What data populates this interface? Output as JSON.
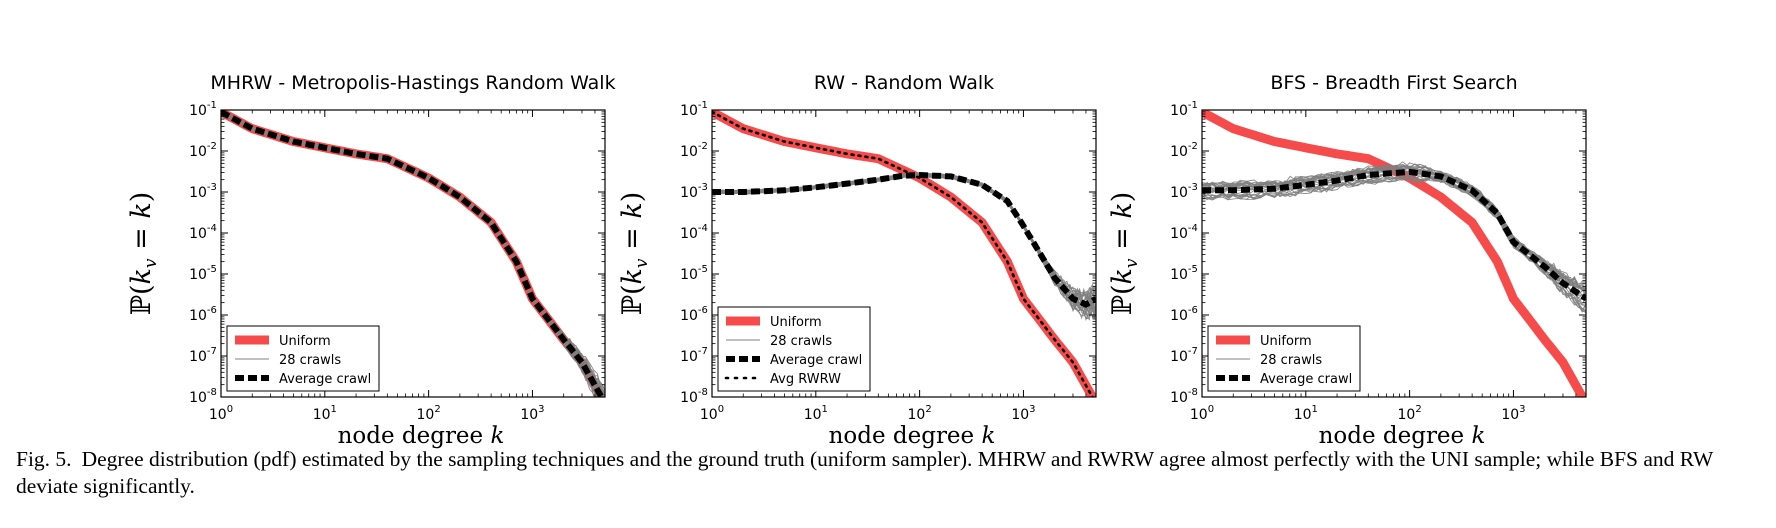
{
  "caption": {
    "label": "Fig. 5.",
    "text": "Degree distribution (pdf) estimated by the sampling techniques and the ground truth (uniform sampler). MHRW and RWRW agree almost perfectly with the UNI sample; while BFS and RW deviate significantly."
  },
  "colors": {
    "uniform": "#f54b4b",
    "crawls": "#808080",
    "average": "#000000"
  },
  "chart_data": [
    {
      "type": "line",
      "title": "MHRW - Metropolis-Hastings Random Walk",
      "xlabel": "node degree k",
      "ylabel": "ℙ(k_v = k)",
      "xscale": "log",
      "yscale": "log",
      "xlim": [
        1,
        5000
      ],
      "ylim": [
        1e-08,
        0.1
      ],
      "xticks": [
        "10^0",
        "10^1",
        "10^2",
        "10^3"
      ],
      "yticks": [
        "10^-1",
        "10^-2",
        "10^-3",
        "10^-4",
        "10^-5",
        "10^-6",
        "10^-7",
        "10^-8"
      ],
      "legend": {
        "placement": "lower-left",
        "entries": [
          "Uniform",
          "28 crawls",
          "Average crawl"
        ]
      },
      "series": [
        {
          "name": "Uniform",
          "x": [
            1,
            2,
            5,
            10,
            20,
            40,
            100,
            200,
            400,
            700,
            1000,
            2000,
            3000,
            5000
          ],
          "y": [
            0.09,
            0.035,
            0.017,
            0.012,
            0.0085,
            0.0065,
            0.0022,
            0.00075,
            0.00018,
            2e-05,
            2.5e-06,
            2.5e-07,
            7e-08,
            7e-09
          ]
        },
        {
          "name": "28 crawls",
          "x": [
            1,
            2,
            5,
            10,
            20,
            40,
            100,
            200,
            400,
            700,
            1000,
            2000,
            3000,
            5000
          ],
          "y": [
            0.09,
            0.035,
            0.017,
            0.012,
            0.0085,
            0.0065,
            0.0022,
            0.00075,
            0.00018,
            2e-05,
            2.5e-06,
            2.5e-07,
            7e-08,
            7e-09
          ]
        },
        {
          "name": "Average crawl",
          "x": [
            1,
            2,
            5,
            10,
            20,
            40,
            100,
            200,
            400,
            700,
            1000,
            2000,
            3000,
            5000
          ],
          "y": [
            0.09,
            0.035,
            0.017,
            0.012,
            0.0085,
            0.0065,
            0.0022,
            0.00075,
            0.00018,
            2e-05,
            2.5e-06,
            2.5e-07,
            7e-08,
            7e-09
          ]
        }
      ]
    },
    {
      "type": "line",
      "title": "RW - Random Walk",
      "xlabel": "node degree k",
      "ylabel": "ℙ(k_v = k)",
      "xscale": "log",
      "yscale": "log",
      "xlim": [
        1,
        5000
      ],
      "ylim": [
        1e-08,
        0.1
      ],
      "xticks": [
        "10^0",
        "10^1",
        "10^2",
        "10^3"
      ],
      "yticks": [
        "10^-1",
        "10^-2",
        "10^-3",
        "10^-4",
        "10^-5",
        "10^-6",
        "10^-7",
        "10^-8"
      ],
      "legend": {
        "placement": "lower-left",
        "entries": [
          "Uniform",
          "28 crawls",
          "Average crawl",
          "Avg RWRW"
        ]
      },
      "series": [
        {
          "name": "Uniform",
          "x": [
            1,
            2,
            5,
            10,
            20,
            40,
            100,
            200,
            400,
            700,
            1000,
            2000,
            3000,
            5000
          ],
          "y": [
            0.09,
            0.035,
            0.017,
            0.012,
            0.0085,
            0.0065,
            0.0022,
            0.00075,
            0.00018,
            2e-05,
            2.5e-06,
            2.5e-07,
            7e-08,
            7e-09
          ]
        },
        {
          "name": "28 crawls",
          "x": [
            1,
            2,
            5,
            10,
            20,
            40,
            70,
            100,
            200,
            400,
            700,
            1000,
            2000,
            3000,
            4000,
            5000
          ],
          "y": [
            0.001,
            0.001,
            0.0011,
            0.0013,
            0.0016,
            0.002,
            0.0025,
            0.0026,
            0.0024,
            0.0015,
            0.0006,
            0.00015,
            8e-06,
            2.5e-06,
            1.8e-06,
            2.5e-06
          ]
        },
        {
          "name": "Average crawl",
          "x": [
            1,
            2,
            5,
            10,
            20,
            40,
            70,
            100,
            200,
            400,
            700,
            1000,
            2000,
            3000,
            4000,
            5000
          ],
          "y": [
            0.001,
            0.001,
            0.0011,
            0.0013,
            0.0016,
            0.002,
            0.0025,
            0.0026,
            0.0024,
            0.0015,
            0.0006,
            0.00015,
            8e-06,
            2.5e-06,
            1.8e-06,
            2.5e-06
          ]
        },
        {
          "name": "Avg RWRW",
          "x": [
            1,
            2,
            5,
            10,
            20,
            40,
            100,
            200,
            400,
            700,
            1000,
            2000,
            3000,
            5000
          ],
          "y": [
            0.09,
            0.035,
            0.017,
            0.012,
            0.0085,
            0.0065,
            0.0022,
            0.00075,
            0.00018,
            2e-05,
            2.5e-06,
            2.5e-07,
            7e-08,
            7e-09
          ]
        }
      ]
    },
    {
      "type": "line",
      "title": "BFS - Breadth First Search",
      "xlabel": "node degree k",
      "ylabel": "ℙ(k_v = k)",
      "xscale": "log",
      "yscale": "log",
      "xlim": [
        1,
        5000
      ],
      "ylim": [
        1e-08,
        0.1
      ],
      "xticks": [
        "10^0",
        "10^1",
        "10^2",
        "10^3"
      ],
      "yticks": [
        "10^-1",
        "10^-2",
        "10^-3",
        "10^-4",
        "10^-5",
        "10^-6",
        "10^-7",
        "10^-8"
      ],
      "legend": {
        "placement": "lower-left",
        "entries": [
          "Uniform",
          "28 crawls",
          "Average crawl"
        ]
      },
      "series": [
        {
          "name": "Uniform",
          "x": [
            1,
            2,
            5,
            10,
            20,
            40,
            100,
            200,
            400,
            700,
            1000,
            2000,
            3000,
            5000
          ],
          "y": [
            0.09,
            0.035,
            0.017,
            0.012,
            0.0085,
            0.0065,
            0.0022,
            0.00075,
            0.00018,
            2e-05,
            2.5e-06,
            2.5e-07,
            7e-08,
            7e-09
          ]
        },
        {
          "name": "28 crawls",
          "x": [
            1,
            2,
            5,
            10,
            20,
            40,
            100,
            200,
            400,
            700,
            1000,
            2000,
            3000,
            5000
          ],
          "y": [
            0.0011,
            0.0011,
            0.0012,
            0.0015,
            0.0019,
            0.0026,
            0.0031,
            0.0024,
            0.0011,
            0.0003,
            6e-05,
            1.5e-05,
            6e-06,
            2.5e-06
          ]
        },
        {
          "name": "Average crawl",
          "x": [
            1,
            2,
            5,
            10,
            20,
            40,
            100,
            200,
            400,
            700,
            1000,
            2000,
            3000,
            5000
          ],
          "y": [
            0.0011,
            0.0011,
            0.0012,
            0.0015,
            0.0019,
            0.0026,
            0.0031,
            0.0024,
            0.0011,
            0.0003,
            6e-05,
            1.5e-05,
            6e-06,
            2.5e-06
          ]
        }
      ]
    }
  ]
}
